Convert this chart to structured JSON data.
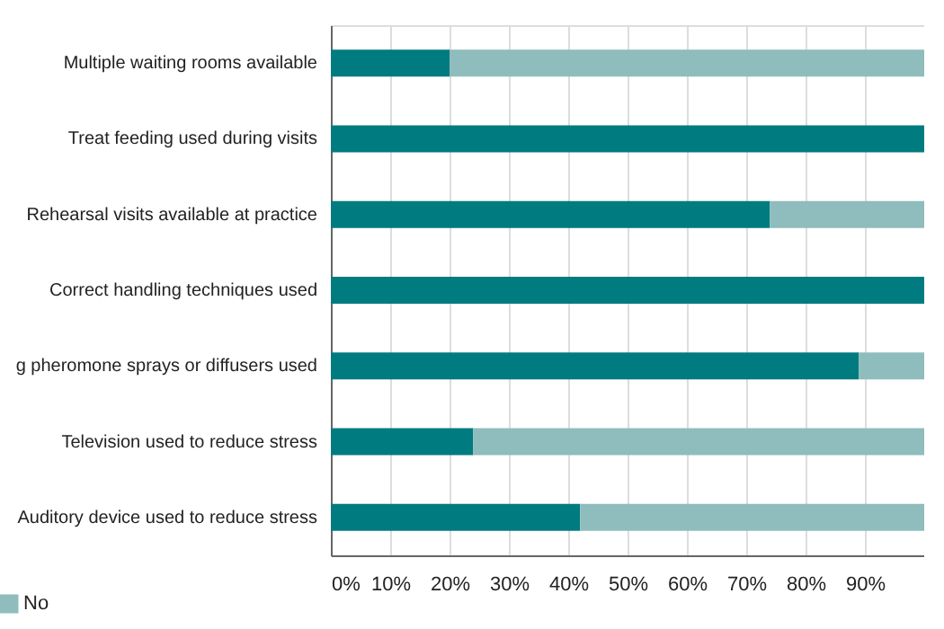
{
  "chart_data": {
    "type": "bar",
    "orientation": "horizontal",
    "stacked": true,
    "categories": [
      "Multiple waiting rooms available",
      "Treat feeding used during visits",
      "Rehearsal visits available at practice",
      "Correct handling techniques used",
      "g pheromone sprays or diffusers used",
      "Television used to reduce stress",
      "Auditory device used to reduce stress"
    ],
    "series": [
      {
        "color": "#007b7f",
        "values": [
          20,
          100,
          74,
          100,
          89,
          24,
          42
        ]
      },
      {
        "name": "No",
        "color": "#8fbcbc",
        "values": [
          80,
          0,
          26,
          0,
          11,
          76,
          58
        ]
      }
    ],
    "xlim": [
      0,
      100
    ],
    "xticks": [
      {
        "value": 0,
        "label": "0%"
      },
      {
        "value": 10,
        "label": "10%"
      },
      {
        "value": 20,
        "label": "20%"
      },
      {
        "value": 30,
        "label": "30%"
      },
      {
        "value": 40,
        "label": "40%"
      },
      {
        "value": 50,
        "label": "50%"
      },
      {
        "value": 60,
        "label": "60%"
      },
      {
        "value": 70,
        "label": "70%"
      },
      {
        "value": 80,
        "label": "80%"
      },
      {
        "value": 90,
        "label": "90%"
      }
    ],
    "grid": "x",
    "legend": "bottom left"
  }
}
